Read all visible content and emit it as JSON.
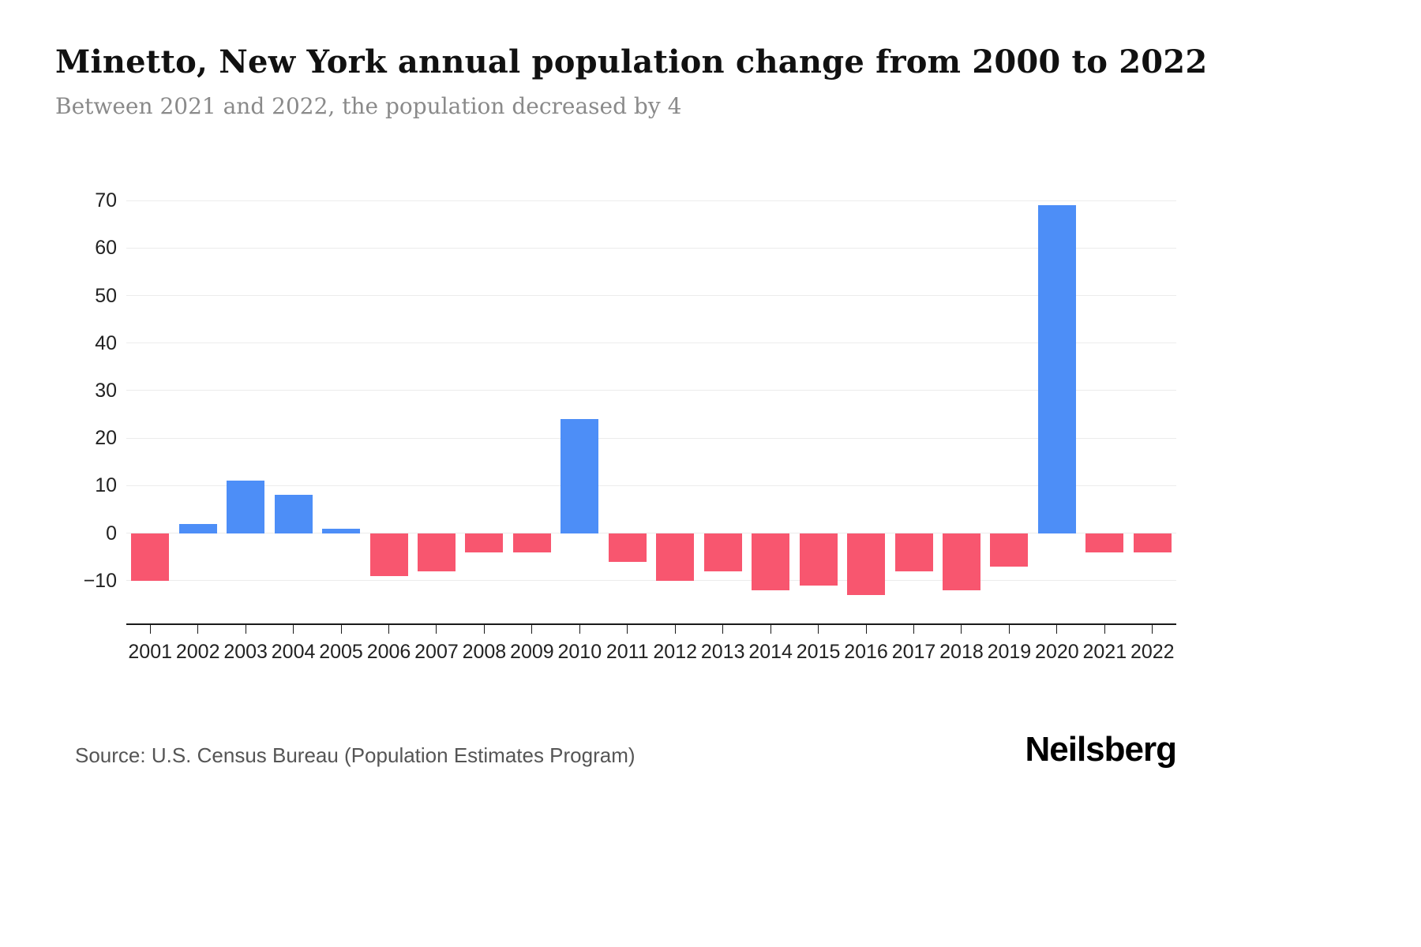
{
  "header": {
    "title": "Minetto, New York annual population change from 2000 to 2022",
    "subtitle": "Between 2021 and 2022, the population decreased by 4"
  },
  "footer": {
    "source": "Source: U.S. Census Bureau (Population Estimates Program)",
    "brand": "Neilsberg"
  },
  "chart_data": {
    "type": "bar",
    "title": "Minetto, New York annual population change from 2000 to 2022",
    "subtitle": "Between 2021 and 2022, the population decreased by 4",
    "categories": [
      "2001",
      "2002",
      "2003",
      "2004",
      "2005",
      "2006",
      "2007",
      "2008",
      "2009",
      "2010",
      "2011",
      "2012",
      "2013",
      "2014",
      "2015",
      "2016",
      "2017",
      "2018",
      "2019",
      "2020",
      "2021",
      "2022"
    ],
    "values": [
      -10,
      2,
      11,
      8,
      1,
      -9,
      -8,
      -4,
      -4,
      24,
      -6,
      -10,
      -8,
      -12,
      -11,
      -13,
      -8,
      -12,
      -7,
      69,
      -4,
      -4
    ],
    "xlabel": "",
    "ylabel": "",
    "yticks": [
      -10,
      0,
      10,
      20,
      30,
      40,
      50,
      60,
      70
    ],
    "ylim": [
      -19,
      74
    ],
    "grid": true,
    "legend": false,
    "colors": {
      "positive": "#4d8ef7",
      "negative": "#f8566f",
      "gridline": "#ececec",
      "axis": "#1a1a1a"
    }
  }
}
